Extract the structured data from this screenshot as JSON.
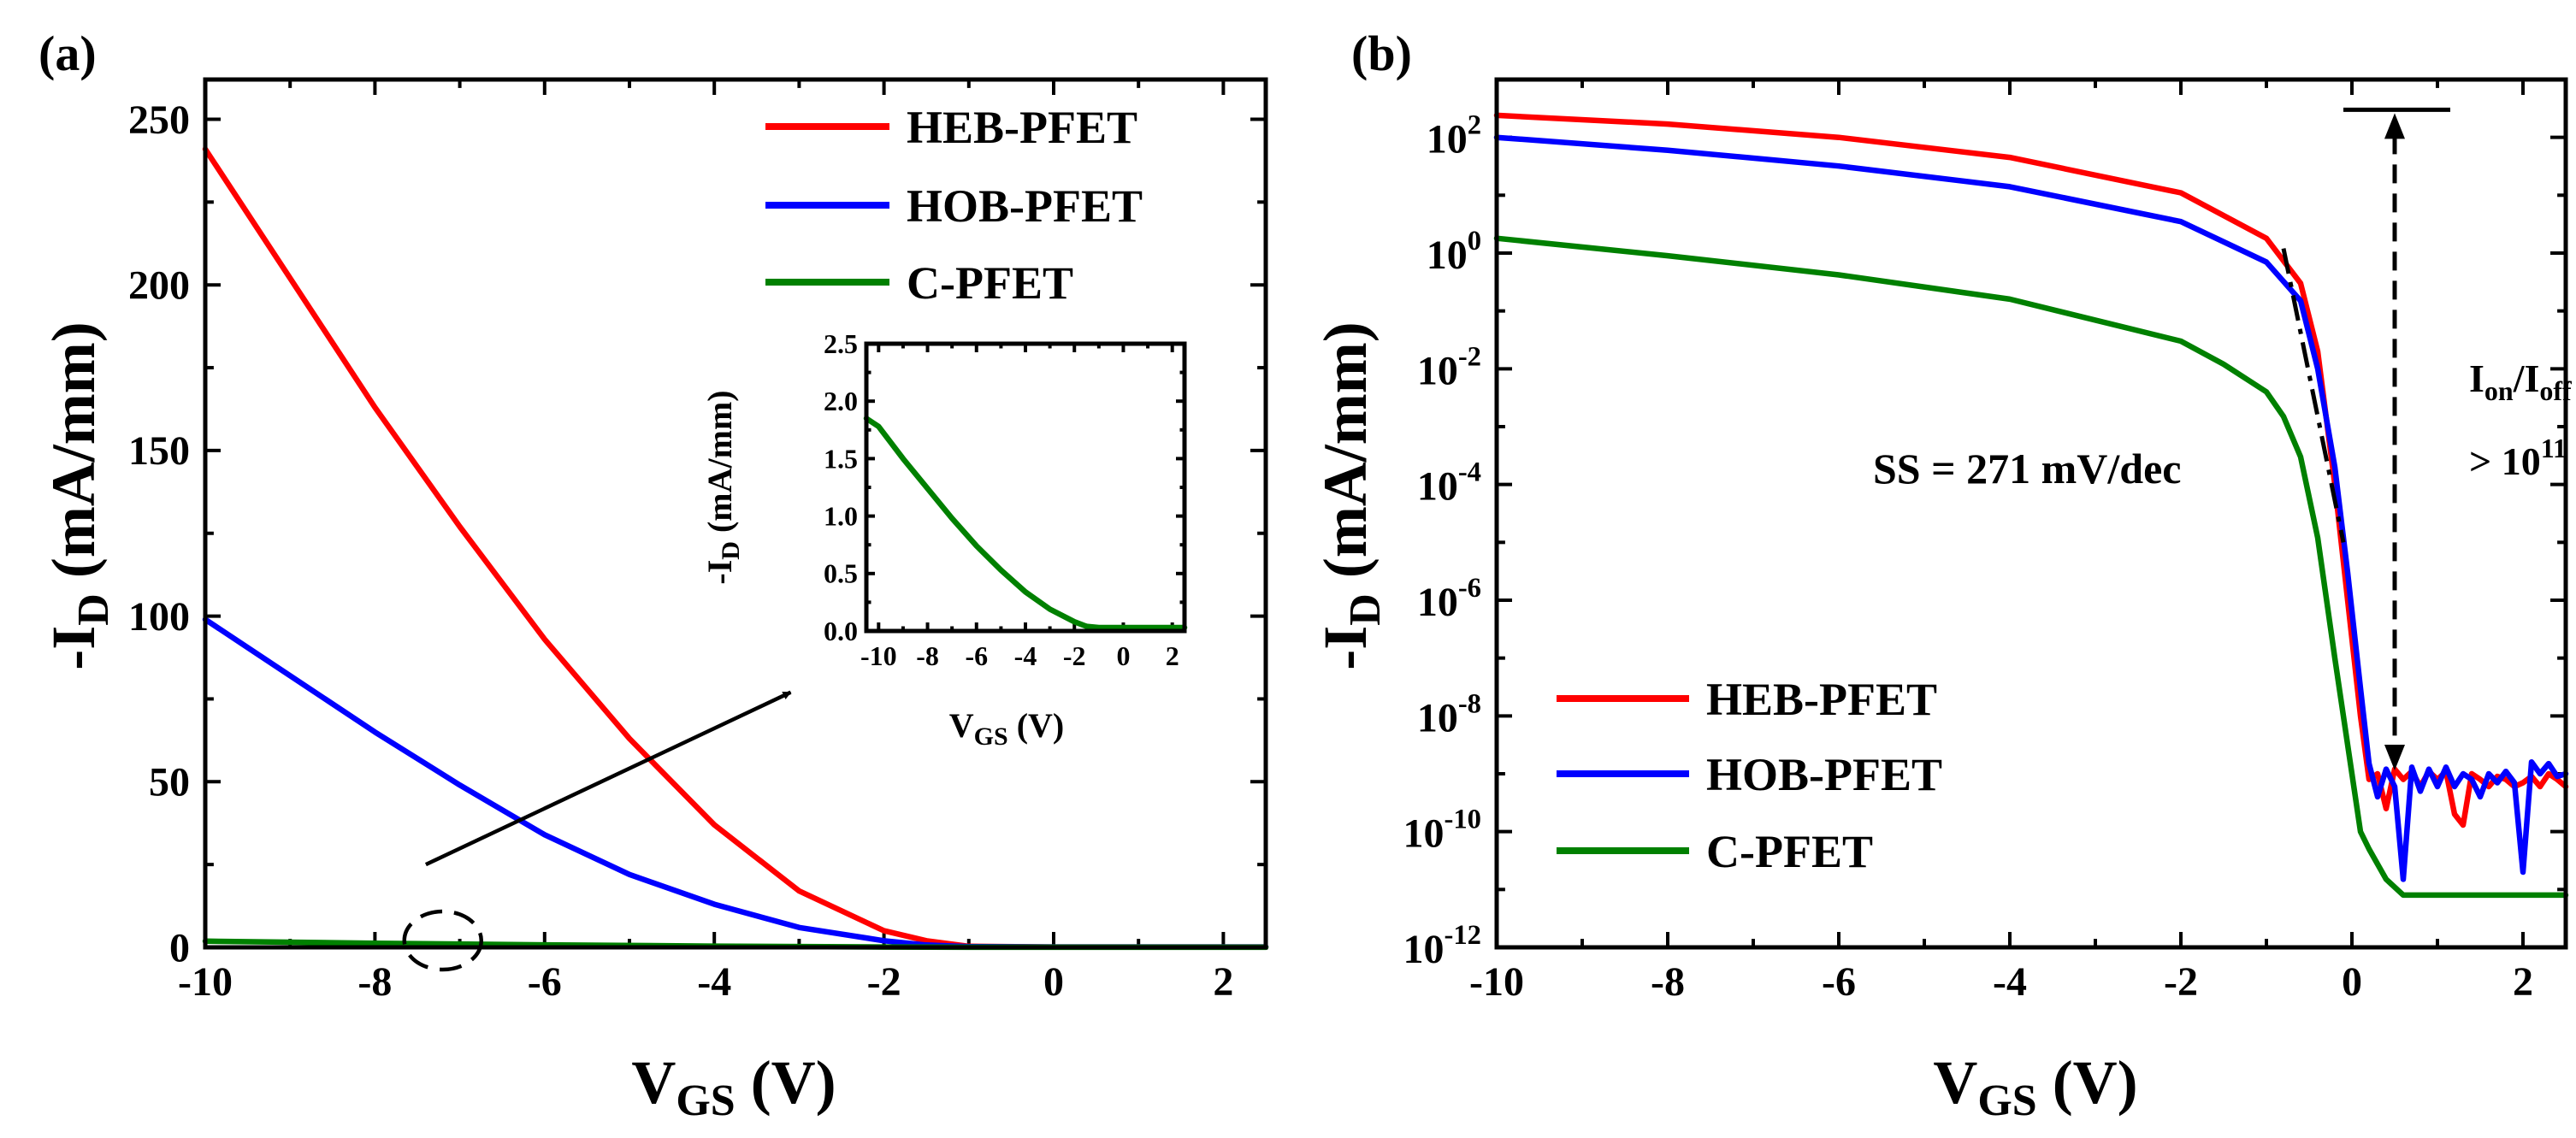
{
  "figure": {
    "colors": {
      "heb": "#ff0000",
      "hob": "#0000ff",
      "c": "#008000",
      "axis": "#000000"
    }
  },
  "chart_data": [
    {
      "id": "a",
      "panel_label": "(a)",
      "type": "line",
      "title": "",
      "xlabel": "V_GS (V)",
      "xlabel_main": "V",
      "xlabel_sub": "GS",
      "xlabel_unit": " (V)",
      "ylabel": "-I_D (mA/mm)",
      "ylabel_main": "-I",
      "ylabel_sub": "D",
      "ylabel_unit": " (mA/mm)",
      "xlim": [
        -10,
        2.5
      ],
      "ylim": [
        0,
        262
      ],
      "xticks": [
        -10,
        -8,
        -6,
        -4,
        -2,
        0,
        2
      ],
      "xtick_labels": [
        "-10",
        "-8",
        "-6",
        "-4",
        "-2",
        "0",
        "2"
      ],
      "yticks": [
        0,
        50,
        100,
        150,
        200,
        250
      ],
      "ytick_labels": [
        "0",
        "50",
        "100",
        "150",
        "200",
        "250"
      ],
      "legend_position": "top-right",
      "series": [
        {
          "name": "HEB-PFET",
          "color": "#ff0000",
          "x": [
            -10,
            -9,
            -8,
            -7,
            -6,
            -5,
            -4,
            -3,
            -2,
            -1.5,
            -1,
            0,
            1,
            2,
            2.5
          ],
          "y": [
            241,
            202,
            163,
            127,
            93,
            63,
            37,
            17,
            5,
            2,
            0.3,
            0.1,
            0.1,
            0.1,
            0.1
          ]
        },
        {
          "name": "HOB-PFET",
          "color": "#0000ff",
          "x": [
            -10,
            -9,
            -8,
            -7,
            -6,
            -5,
            -4,
            -3,
            -2,
            -1.5,
            -1,
            0,
            1,
            2,
            2.5
          ],
          "y": [
            99,
            82,
            65,
            49,
            34,
            22,
            13,
            6,
            2,
            0.7,
            0.2,
            0.1,
            0.1,
            0.1,
            0.1
          ]
        },
        {
          "name": "C-PFET",
          "color": "#008000",
          "x": [
            -10,
            -8,
            -6,
            -4,
            -2,
            -1,
            0,
            1,
            2,
            2.5
          ],
          "y": [
            1.85,
            1.25,
            0.75,
            0.35,
            0.1,
            0.03,
            0.02,
            0.02,
            0.02,
            0.02
          ]
        }
      ],
      "annotations": {
        "zoom_region": {
          "x": -7.2,
          "y": 0
        },
        "arrow_from": {
          "x": -7.4,
          "y": 25
        },
        "arrow_to": {
          "x": -3.1,
          "y": 77
        }
      },
      "inset": {
        "type": "line",
        "xlabel": "V_GS (V)",
        "xlabel_main": "V",
        "xlabel_sub": "GS",
        "xlabel_unit": " (V)",
        "ylabel": "-I_D (mA/mm)",
        "ylabel_main": "-I",
        "ylabel_sub": "D",
        "ylabel_unit": " (mA/mm)",
        "xlim": [
          -10.5,
          2.5
        ],
        "ylim": [
          0,
          2.5
        ],
        "xticks": [
          -10,
          -8,
          -6,
          -4,
          -2,
          0,
          2
        ],
        "xtick_labels": [
          "-10",
          "-8",
          "-6",
          "-4",
          "-2",
          "0",
          "2"
        ],
        "yticks": [
          0,
          0.5,
          1.0,
          1.5,
          2.0,
          2.5
        ],
        "ytick_labels": [
          "0.0",
          "0.5",
          "1.0",
          "1.5",
          "2.0",
          "2.5"
        ],
        "series": [
          {
            "name": "C-PFET",
            "color": "#008000",
            "x": [
              -10.5,
              -10,
              -9,
              -8,
              -7,
              -6,
              -5,
              -4,
              -3,
              -2,
              -1.5,
              -1,
              0,
              1,
              2,
              2.5
            ],
            "y": [
              1.85,
              1.78,
              1.5,
              1.24,
              0.98,
              0.74,
              0.53,
              0.34,
              0.19,
              0.08,
              0.04,
              0.03,
              0.03,
              0.03,
              0.03,
              0.03
            ]
          }
        ]
      }
    },
    {
      "id": "b",
      "panel_label": "(b)",
      "type": "line",
      "title": "",
      "yscale": "log",
      "xlabel": "V_GS (V)",
      "xlabel_main": "V",
      "xlabel_sub": "GS",
      "xlabel_unit": " (V)",
      "ylabel": "-I_D (mA/mm)",
      "ylabel_main": "-I",
      "ylabel_sub": "D",
      "ylabel_unit": " (mA/mm)",
      "xlim": [
        -10,
        2.5
      ],
      "ylim": [
        1e-12,
        1000.0
      ],
      "xticks": [
        -10,
        -8,
        -6,
        -4,
        -2,
        0,
        2
      ],
      "xtick_labels": [
        "-10",
        "-8",
        "-6",
        "-4",
        "-2",
        "0",
        "2"
      ],
      "ytick_exponents": [
        -12,
        -10,
        -8,
        -6,
        -4,
        -2,
        0,
        2
      ],
      "ytick_base": "10",
      "ytick_sups": [
        "-12",
        "-10",
        "-8",
        "-6",
        "-4",
        "-2",
        "0",
        "2"
      ],
      "legend_position": "bottom-left",
      "series": [
        {
          "name": "HEB-PFET",
          "color": "#ff0000",
          "x": [
            -10,
            -8,
            -6,
            -4,
            -2,
            -1,
            -0.6,
            -0.4,
            -0.2,
            -0.05,
            0.1,
            0.2,
            0.3,
            0.4,
            0.5,
            0.6,
            0.7,
            0.8,
            0.9,
            1.0,
            1.1,
            1.2,
            1.3,
            1.4,
            1.5,
            1.6,
            1.7,
            1.8,
            1.9,
            2.0,
            2.1,
            2.2,
            2.3,
            2.4,
            2.5
          ],
          "y": [
            240,
            170,
            100,
            45,
            11,
            1.8,
            0.3,
            0.02,
            0.0001,
            1e-06,
            1e-08,
            8e-10,
            1e-09,
            2.5e-10,
            1.2e-09,
            8e-10,
            1.1e-09,
            6e-10,
            1.1e-09,
            8e-10,
            1.1e-09,
            2e-10,
            1.3e-10,
            1e-09,
            8e-10,
            6e-10,
            9e-10,
            8e-10,
            6e-10,
            7e-10,
            9e-10,
            6e-10,
            1e-09,
            8e-10,
            6e-10
          ]
        },
        {
          "name": "HOB-PFET",
          "color": "#0000ff",
          "x": [
            -10,
            -8,
            -6,
            -4,
            -2,
            -1,
            -0.6,
            -0.4,
            -0.2,
            -0.05,
            0.1,
            0.2,
            0.3,
            0.4,
            0.5,
            0.6,
            0.7,
            0.8,
            0.9,
            1.0,
            1.1,
            1.2,
            1.3,
            1.4,
            1.5,
            1.6,
            1.7,
            1.8,
            1.9,
            2.0,
            2.1,
            2.2,
            2.3,
            2.4,
            2.5
          ],
          "y": [
            100,
            60,
            32,
            14,
            3.5,
            0.7,
            0.15,
            0.01,
            0.0002,
            3e-06,
            3e-08,
            1.5e-09,
            4e-10,
            1.2e-09,
            6e-10,
            1.5e-11,
            1.3e-09,
            5e-10,
            1.2e-09,
            6e-10,
            1.3e-09,
            6e-10,
            1e-09,
            8e-10,
            4e-10,
            1e-09,
            7e-10,
            1.1e-09,
            7e-10,
            2e-11,
            1.6e-09,
            1e-09,
            1.5e-09,
            9e-10,
            1e-09
          ]
        },
        {
          "name": "C-PFET",
          "color": "#008000",
          "x": [
            -10,
            -8,
            -6,
            -4,
            -2,
            -1.5,
            -1,
            -0.8,
            -0.6,
            -0.4,
            -0.2,
            -0.1,
            0.0,
            0.1,
            0.2,
            0.4,
            0.6,
            1.0,
            2.0,
            2.5
          ],
          "y": [
            1.8,
            0.9,
            0.42,
            0.16,
            0.03,
            0.012,
            0.004,
            0.0015,
            0.0003,
            1.2e-05,
            1e-07,
            1e-08,
            1e-09,
            1e-10,
            5e-11,
            1.5e-11,
            8e-12,
            8e-12,
            8e-12,
            8e-12
          ]
        }
      ],
      "annotations": {
        "ss_label": "SS = 271 mV/dec",
        "ratio_line1_main1": "I",
        "ratio_line1_sub1": "on",
        "ratio_line1_mid": "/I",
        "ratio_line1_sub2": "off",
        "ratio_line2_prefix": "> 10",
        "ratio_line2_sup": "11",
        "on_level": {
          "x": 0.5,
          "y": 300
        },
        "off_level": {
          "x": 0.5,
          "y": 1e-09
        },
        "ss_line_start": {
          "x": -0.8,
          "y": 1.2
        },
        "ss_line_end": {
          "x": -0.1,
          "y": 1e-05
        }
      }
    }
  ]
}
